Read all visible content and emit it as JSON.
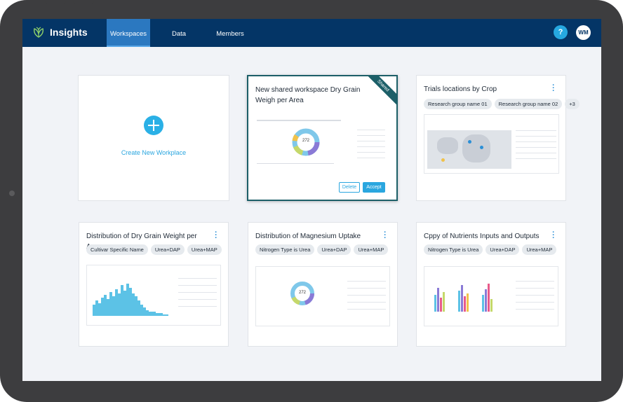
{
  "app": {
    "brand": "Insights"
  },
  "nav": {
    "items": [
      "Workspaces",
      "Data",
      "Members"
    ],
    "active": "Workspaces"
  },
  "header": {
    "help_label": "?",
    "avatar_initials": "WM"
  },
  "create_card": {
    "label": "Create New Workplace"
  },
  "cards": [
    {
      "title": "New shared workspace Dry Grain Weigh per Area",
      "ribbon": "Shared",
      "thumbnail_value": "272",
      "buttons": {
        "delete": "Delete",
        "accept": "Accept"
      }
    },
    {
      "title": "Trials locations by Crop",
      "tags": [
        "Research group name 01",
        "Research group name 02",
        "+3"
      ]
    },
    {
      "title": "Distribution of Dry Grain Weight per Area",
      "tags": [
        "Cultivar Specific Name",
        "Urea+DAP",
        "Urea+MAP"
      ]
    },
    {
      "title": "Distribution of Magnesium Uptake",
      "tags": [
        "Nitrogen Type is Urea",
        "Urea+DAP",
        "Urea+MAP"
      ],
      "thumbnail_value": "272"
    },
    {
      "title": "Cppy of Nutrients Inputs and Outputs",
      "tags": [
        "Nitrogen Type is Urea",
        "Urea+DAP",
        "Urea+MAP"
      ]
    }
  ],
  "colors": {
    "nav_bg": "#043566",
    "nav_active": "#2b78c0",
    "accent": "#2aa6df",
    "shared": "#1c5f68",
    "help": "#26a8e0"
  }
}
